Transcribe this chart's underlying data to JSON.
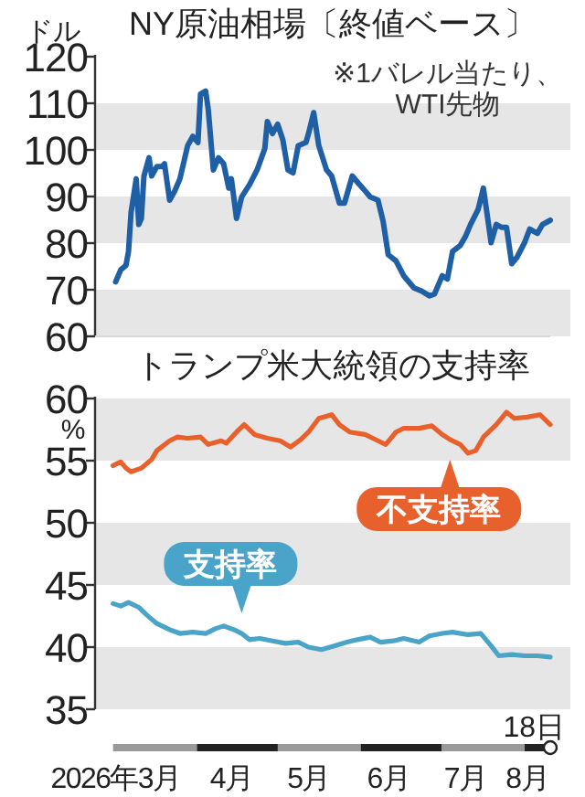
{
  "chart_data": [
    {
      "type": "line",
      "title": "NY原油相場〔終値ベース〕",
      "ylabel": "ドル",
      "annotations": [
        "※1バレル当たり、WTI先物"
      ],
      "x": [
        "2026-03-02",
        "2026-03-04",
        "2026-03-06",
        "2026-03-07",
        "2026-03-08",
        "2026-03-10",
        "2026-03-11",
        "2026-03-12",
        "2026-03-13",
        "2026-03-15",
        "2026-03-16",
        "2026-03-18",
        "2026-03-20",
        "2026-03-21",
        "2026-03-23",
        "2026-03-25",
        "2026-03-27",
        "2026-03-30",
        "2026-04-01",
        "2026-04-03",
        "2026-04-04",
        "2026-04-06",
        "2026-04-07",
        "2026-04-09",
        "2026-04-11",
        "2026-04-13",
        "2026-04-15",
        "2026-04-16",
        "2026-04-18",
        "2026-04-20",
        "2026-04-23",
        "2026-04-26",
        "2026-04-29",
        "2026-04-30",
        "2026-05-02",
        "2026-05-04",
        "2026-05-06",
        "2026-05-08",
        "2026-05-10",
        "2026-05-12",
        "2026-05-15",
        "2026-05-16",
        "2026-05-18",
        "2026-05-20",
        "2026-05-23",
        "2026-05-25",
        "2026-05-28",
        "2026-05-30",
        "2026-06-02",
        "2026-06-04",
        "2026-06-07",
        "2026-06-09",
        "2026-06-12",
        "2026-06-14",
        "2026-06-16",
        "2026-06-19",
        "2026-06-22",
        "2026-06-26",
        "2026-06-29",
        "2026-07-02",
        "2026-07-04",
        "2026-07-07",
        "2026-07-09",
        "2026-07-11",
        "2026-07-14",
        "2026-07-16",
        "2026-07-18",
        "2026-07-21",
        "2026-07-23",
        "2026-07-24",
        "2026-07-26",
        "2026-07-28",
        "2026-07-30",
        "2026-08-01",
        "2026-08-03",
        "2026-08-05",
        "2026-08-08",
        "2026-08-10",
        "2026-08-13",
        "2026-08-15",
        "2026-08-18"
      ],
      "series": [
        {
          "color": "#1f5fa6",
          "values": [
            71.7,
            74.3,
            75.2,
            78.2,
            86.6,
            93.8,
            84,
            85.3,
            94.4,
            98.3,
            94.4,
            96.4,
            96.4,
            97,
            89.2,
            91.2,
            93.8,
            100.9,
            102.9,
            101.6,
            112,
            112.6,
            108.7,
            95.7,
            98.3,
            97,
            91.8,
            93.8,
            85.3,
            89.9,
            92.5,
            95.7,
            100.3,
            106.1,
            103.5,
            105.5,
            102.2,
            95.7,
            95.1,
            100.9,
            101.6,
            103.5,
            108,
            100.9,
            95.7,
            94.4,
            88.6,
            88.6,
            94.4,
            93.1,
            91.2,
            89.9,
            89.2,
            84.7,
            77.5,
            76.2,
            73,
            70.4,
            69.7,
            68.7,
            69.1,
            73,
            72.3,
            78.2,
            79.5,
            81.4,
            84,
            87.3,
            91.8,
            87.9,
            80.1,
            84,
            83.4,
            83.4,
            75.6,
            76.9,
            80.1,
            83,
            82.1,
            84,
            84.9
          ]
        }
      ],
      "xlim": [
        "2026-02-22",
        "2026-08-18"
      ],
      "ylim": [
        60,
        120
      ],
      "yticks": [
        60,
        70,
        80,
        90,
        100,
        110,
        120
      ],
      "tick_labels": "y",
      "bands": [
        {
          "axis": "y",
          "from": 60,
          "to": 70,
          "color": "#e6e6e6"
        },
        {
          "axis": "y",
          "from": 80,
          "to": 90,
          "color": "#e6e6e6"
        },
        {
          "axis": "y",
          "from": 100,
          "to": 110,
          "color": "#e6e6e6"
        }
      ]
    },
    {
      "type": "line",
      "title": "トランプ米大統領の支持率",
      "ylabel": "%",
      "series": [
        {
          "name": "不支持率",
          "color": "#e8602c",
          "x": [
            "2026-03-01",
            "2026-03-04",
            "2026-03-06",
            "2026-03-08",
            "2026-03-12",
            "2026-03-16",
            "2026-03-18",
            "2026-03-23",
            "2026-03-26",
            "2026-03-30",
            "2026-04-04",
            "2026-04-07",
            "2026-04-12",
            "2026-04-14",
            "2026-04-18",
            "2026-04-21",
            "2026-04-25",
            "2026-04-30",
            "2026-05-05",
            "2026-05-09",
            "2026-05-13",
            "2026-05-16",
            "2026-05-20",
            "2026-05-25",
            "2026-05-28",
            "2026-06-01",
            "2026-06-07",
            "2026-06-12",
            "2026-06-15",
            "2026-06-19",
            "2026-06-22",
            "2026-06-28",
            "2026-07-03",
            "2026-07-07",
            "2026-07-10",
            "2026-07-14",
            "2026-07-17",
            "2026-07-20",
            "2026-07-23",
            "2026-07-28",
            "2026-08-01",
            "2026-08-04",
            "2026-08-09",
            "2026-08-14",
            "2026-08-18"
          ],
          "values": [
            54.6,
            54.9,
            54.4,
            54.1,
            54.4,
            55.1,
            55.8,
            56.6,
            56.9,
            56.8,
            56.9,
            56.3,
            56.6,
            56.4,
            57.3,
            57.9,
            57.1,
            56.8,
            56.6,
            56.1,
            56.7,
            57.3,
            58.4,
            58.7,
            57.9,
            57.3,
            57.1,
            56.6,
            56.3,
            57.3,
            57.6,
            57.6,
            57.8,
            57.1,
            56.7,
            56.3,
            55.6,
            55.8,
            56.9,
            57.9,
            58.9,
            58.4,
            58.5,
            58.7,
            57.9
          ]
        },
        {
          "name": "支持率",
          "color": "#4aa3c8",
          "x": [
            "2026-03-01",
            "2026-03-04",
            "2026-03-07",
            "2026-03-11",
            "2026-03-14",
            "2026-03-18",
            "2026-03-23",
            "2026-03-27",
            "2026-04-01",
            "2026-04-06",
            "2026-04-10",
            "2026-04-13",
            "2026-04-17",
            "2026-04-20",
            "2026-04-23",
            "2026-04-27",
            "2026-05-02",
            "2026-05-07",
            "2026-05-12",
            "2026-05-16",
            "2026-05-21",
            "2026-05-26",
            "2026-05-31",
            "2026-06-04",
            "2026-06-09",
            "2026-06-13",
            "2026-06-18",
            "2026-06-22",
            "2026-06-28",
            "2026-07-02",
            "2026-07-07",
            "2026-07-11",
            "2026-07-17",
            "2026-07-22",
            "2026-07-26",
            "2026-07-29",
            "2026-08-03",
            "2026-08-08",
            "2026-08-13",
            "2026-08-18"
          ],
          "values": [
            43.5,
            43.3,
            43.6,
            43.2,
            42.6,
            41.9,
            41.4,
            41.1,
            41.2,
            41.1,
            41.5,
            41.7,
            41.4,
            41.1,
            40.6,
            40.7,
            40.5,
            40.3,
            40.4,
            40,
            39.8,
            40.1,
            40.4,
            40.6,
            40.8,
            40.4,
            40.5,
            40.7,
            40.4,
            40.9,
            41.1,
            41.2,
            41,
            41.1,
            40.1,
            39.3,
            39.4,
            39.3,
            39.3,
            39.2
          ]
        }
      ],
      "xlim": [
        "2026-02-22",
        "2026-08-18"
      ],
      "xticks": [
        {
          "value": "2026-03-02",
          "label": "2026年3月"
        },
        {
          "value": "2026-04-16",
          "label": "4月"
        },
        {
          "value": "2026-05-16",
          "label": "5月"
        },
        {
          "value": "2026-06-16",
          "label": "6月"
        },
        {
          "value": "2026-07-16",
          "label": "7月"
        },
        {
          "value": "2026-08-09",
          "label": "8月"
        }
      ],
      "annotations": [
        "18日"
      ],
      "ylim": [
        35,
        60
      ],
      "yticks": [
        35,
        40,
        45,
        50,
        55,
        60
      ],
      "bands": [
        {
          "axis": "y",
          "from": 35,
          "to": 40,
          "color": "#e6e6e6"
        },
        {
          "axis": "y",
          "from": 45,
          "to": 50,
          "color": "#e6e6e6"
        },
        {
          "axis": "y",
          "from": 55,
          "to": 60,
          "color": "#e6e6e6"
        }
      ]
    }
  ]
}
